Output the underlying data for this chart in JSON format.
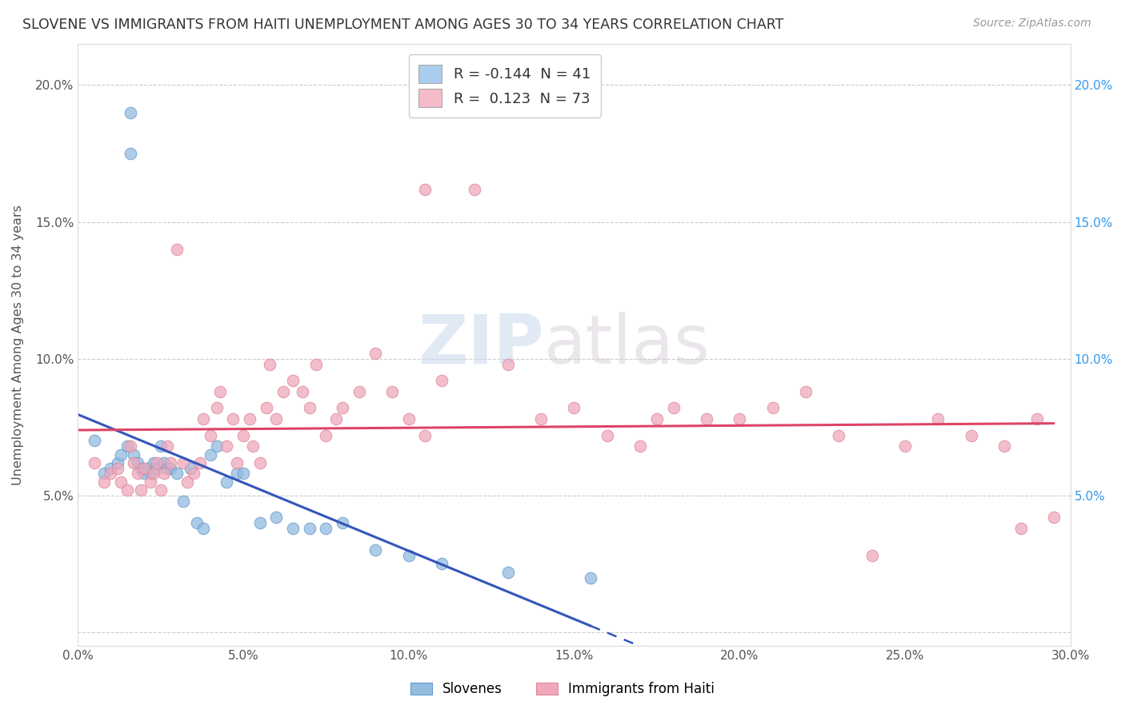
{
  "title": "SLOVENE VS IMMIGRANTS FROM HAITI UNEMPLOYMENT AMONG AGES 30 TO 34 YEARS CORRELATION CHART",
  "source": "Source: ZipAtlas.com",
  "ylabel": "Unemployment Among Ages 30 to 34 years",
  "xlim": [
    0.0,
    0.3
  ],
  "ylim": [
    -0.005,
    0.215
  ],
  "xticks": [
    0.0,
    0.05,
    0.1,
    0.15,
    0.2,
    0.25,
    0.3
  ],
  "xticklabels": [
    "0.0%",
    "5.0%",
    "10.0%",
    "15.0%",
    "20.0%",
    "25.0%",
    "30.0%"
  ],
  "yticks": [
    0.0,
    0.05,
    0.1,
    0.15,
    0.2
  ],
  "yticklabels": [
    "",
    "5.0%",
    "10.0%",
    "15.0%",
    "20.0%"
  ],
  "right_yticklabels": [
    "",
    "5.0%",
    "10.0%",
    "15.0%",
    "20.0%"
  ],
  "slovene_color": "#93bce0",
  "haiti_color": "#f0a8bc",
  "slovene_line_color": "#3355bb",
  "haiti_line_color": "#dd4466",
  "slovene_marker_edge": "#6699cc",
  "haiti_marker_edge": "#dd8899",
  "watermark_zip": "ZIP",
  "watermark_atlas": "atlas",
  "legend_label_1": "R = -0.144  N = 41",
  "legend_label_2": "R =  0.123  N = 73",
  "legend_color_1": "#aaccee",
  "legend_color_2": "#f5bbc8",
  "slovene_x": [
    0.005,
    0.008,
    0.01,
    0.012,
    0.013,
    0.015,
    0.016,
    0.016,
    0.017,
    0.018,
    0.019,
    0.02,
    0.021,
    0.022,
    0.023,
    0.024,
    0.025,
    0.026,
    0.027,
    0.028,
    0.03,
    0.032,
    0.034,
    0.036,
    0.038,
    0.04,
    0.042,
    0.045,
    0.048,
    0.05,
    0.055,
    0.06,
    0.065,
    0.07,
    0.075,
    0.08,
    0.09,
    0.1,
    0.11,
    0.13,
    0.155
  ],
  "slovene_y": [
    0.07,
    0.058,
    0.06,
    0.062,
    0.065,
    0.068,
    0.19,
    0.175,
    0.065,
    0.062,
    0.06,
    0.058,
    0.06,
    0.058,
    0.062,
    0.06,
    0.068,
    0.062,
    0.06,
    0.06,
    0.058,
    0.048,
    0.06,
    0.04,
    0.038,
    0.065,
    0.068,
    0.055,
    0.058,
    0.058,
    0.04,
    0.042,
    0.038,
    0.038,
    0.038,
    0.04,
    0.03,
    0.028,
    0.025,
    0.022,
    0.02
  ],
  "haiti_x": [
    0.005,
    0.008,
    0.01,
    0.012,
    0.013,
    0.015,
    0.016,
    0.017,
    0.018,
    0.019,
    0.02,
    0.022,
    0.023,
    0.024,
    0.025,
    0.026,
    0.027,
    0.028,
    0.03,
    0.032,
    0.033,
    0.035,
    0.037,
    0.038,
    0.04,
    0.042,
    0.043,
    0.045,
    0.047,
    0.048,
    0.05,
    0.052,
    0.053,
    0.055,
    0.057,
    0.058,
    0.06,
    0.062,
    0.065,
    0.068,
    0.07,
    0.072,
    0.075,
    0.078,
    0.08,
    0.085,
    0.09,
    0.095,
    0.1,
    0.105,
    0.11,
    0.12,
    0.13,
    0.14,
    0.15,
    0.16,
    0.17,
    0.18,
    0.19,
    0.2,
    0.21,
    0.22,
    0.23,
    0.24,
    0.25,
    0.26,
    0.27,
    0.28,
    0.285,
    0.29,
    0.105,
    0.175,
    0.295
  ],
  "haiti_y": [
    0.062,
    0.055,
    0.058,
    0.06,
    0.055,
    0.052,
    0.068,
    0.062,
    0.058,
    0.052,
    0.06,
    0.055,
    0.058,
    0.062,
    0.052,
    0.058,
    0.068,
    0.062,
    0.14,
    0.062,
    0.055,
    0.058,
    0.062,
    0.078,
    0.072,
    0.082,
    0.088,
    0.068,
    0.078,
    0.062,
    0.072,
    0.078,
    0.068,
    0.062,
    0.082,
    0.098,
    0.078,
    0.088,
    0.092,
    0.088,
    0.082,
    0.098,
    0.072,
    0.078,
    0.082,
    0.088,
    0.102,
    0.088,
    0.078,
    0.072,
    0.092,
    0.162,
    0.098,
    0.078,
    0.082,
    0.072,
    0.068,
    0.082,
    0.078,
    0.078,
    0.082,
    0.088,
    0.072,
    0.028,
    0.068,
    0.078,
    0.072,
    0.068,
    0.038,
    0.078,
    0.162,
    0.078,
    0.042
  ]
}
